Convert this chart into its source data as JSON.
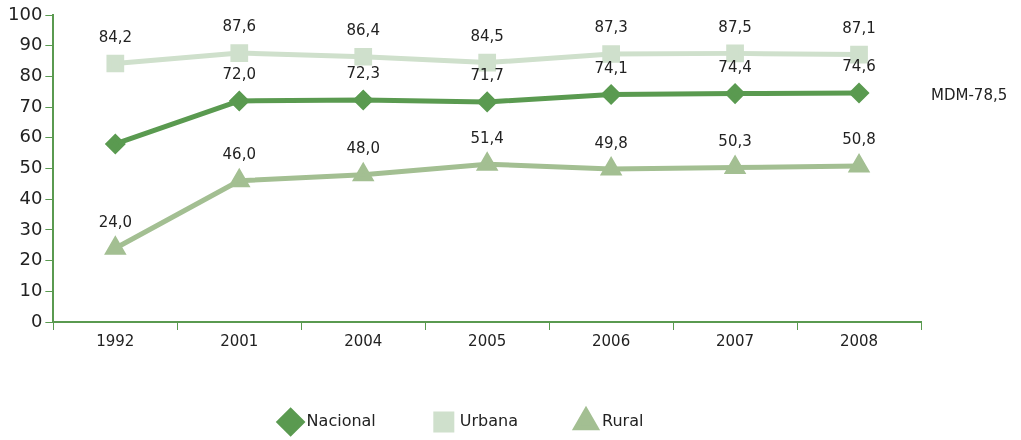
{
  "chart_data": {
    "type": "line",
    "categories": [
      "1992",
      "2001",
      "2004",
      "2005",
      "2006",
      "2007",
      "2008"
    ],
    "series": [
      {
        "name": "Nacional",
        "color": "#5a9a50",
        "marker": "diamond",
        "values": [
          58,
          72.0,
          72.3,
          71.7,
          74.1,
          74.4,
          74.6
        ],
        "value_labels": [
          null,
          "72,0",
          "72,3",
          "71,7",
          "74,1",
          "74,4",
          "74,6"
        ]
      },
      {
        "name": "Urbana",
        "color": "#cfe0cc",
        "marker": "square",
        "values": [
          84.2,
          87.6,
          86.4,
          84.5,
          87.3,
          87.5,
          87.1
        ],
        "value_labels": [
          "84,2",
          "87,6",
          "86,4",
          "84,5",
          "87,3",
          "87,5",
          "87,1"
        ]
      },
      {
        "name": "Rural",
        "color": "#a3bf92",
        "marker": "triangle",
        "values": [
          24.0,
          46.0,
          48.0,
          51.4,
          49.8,
          50.3,
          50.8
        ],
        "value_labels": [
          "24,0",
          "46,0",
          "48,0",
          "51,4",
          "49,8",
          "50,3",
          "50,8"
        ]
      }
    ],
    "ylim": [
      0,
      100
    ],
    "yticks": [
      0,
      10,
      20,
      30,
      40,
      50,
      60,
      70,
      80,
      90,
      100
    ],
    "grid": false,
    "legend": "bottom",
    "annotations": [
      "MDM-78,5"
    ]
  }
}
